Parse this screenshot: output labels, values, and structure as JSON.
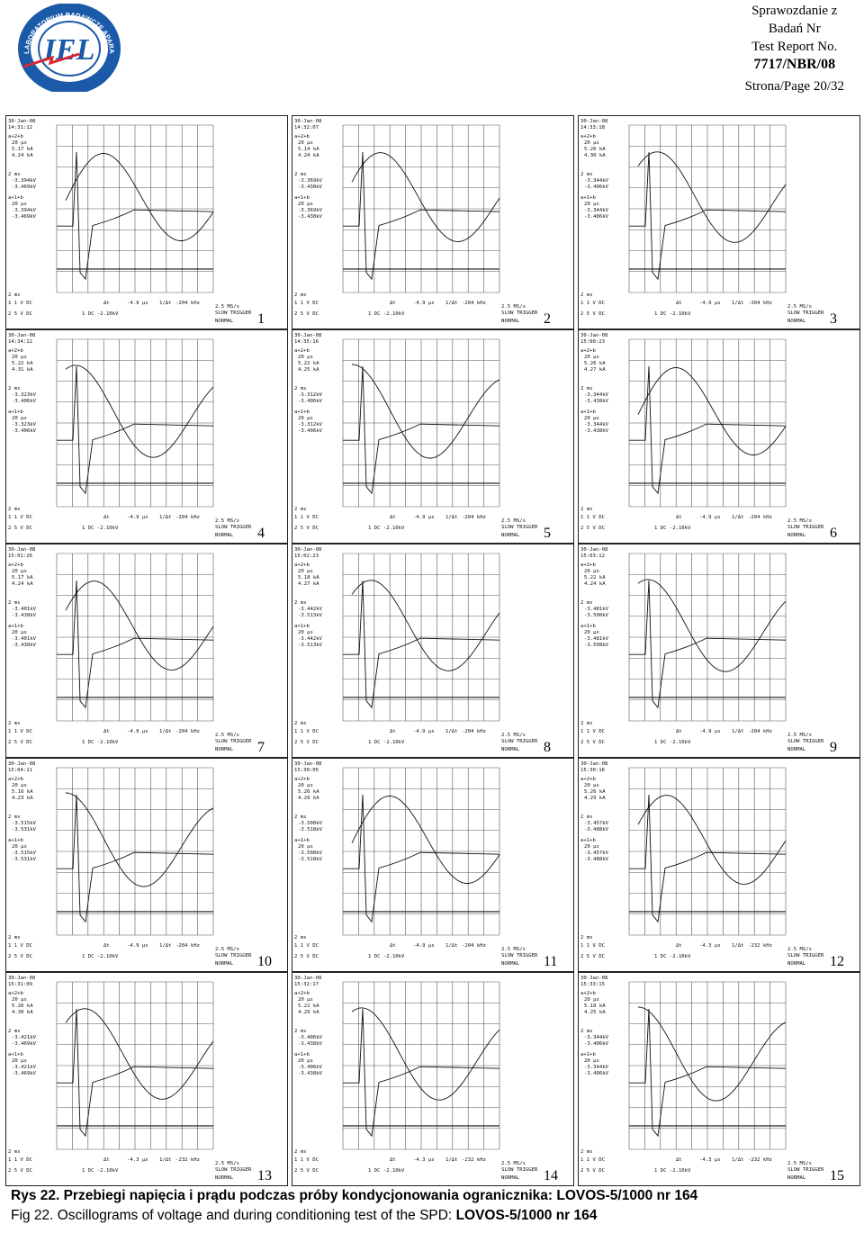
{
  "header": {
    "line1": "Sprawozdanie z",
    "line2": "Badań Nr",
    "line3": "Test Report No.",
    "report_no": "7717/NBR/08",
    "page": "Strona/Page 20/32"
  },
  "logo": {
    "arc_text": "LABORATORIUM BADAWCZE APARATURY ROZDZIELCZEJ",
    "letters": "IEL",
    "color": "#1a5aa8",
    "accent": "#d8262e"
  },
  "scope_common": {
    "cursor_label": "2 ms",
    "ch1": "1  1  V  DC",
    "ch2": "2  5  V  DC",
    "trig": "1  DC -2.10kV",
    "mode": "NORMAL",
    "slow": "SLOW TRIGGER",
    "rate": "2.5 MS/s",
    "ch_a": "a+2+b",
    "ch_b": "a+1+b",
    "time_a": "20 µs",
    "time_b": "20 µs"
  },
  "panels": [
    {
      "num": "1",
      "date": "30-Jan-08",
      "time": "14:31:12",
      "ka1": "5.17 kA",
      "ka2": "4.24 kA",
      "kv1": "-3.394kV",
      "kv2": "-3.469kV",
      "dt": "-4.9 µs",
      "fr": "-204 kHz"
    },
    {
      "num": "2",
      "date": "30-Jan-08",
      "time": "14:32:07",
      "ka1": "5.14 kA",
      "ka2": "4.24 kA",
      "kv1": "-3.369kV",
      "kv2": "-3.438kV",
      "dt": "-4.9 µs",
      "fr": "-204 kHz"
    },
    {
      "num": "3",
      "date": "30-Jan-08",
      "time": "14:33:18",
      "ka1": "5.26 kA",
      "ka2": "4.30 kA",
      "kv1": "-3.344kV",
      "kv2": "-3.406kV",
      "dt": "-4.9 µs",
      "fr": "-204 kHz"
    },
    {
      "num": "4",
      "date": "30-Jan-08",
      "time": "14:34:12",
      "ka1": "5.22 kA",
      "ka2": "4.31 kA",
      "kv1": "-3.323kV",
      "kv2": "-3.406kV",
      "dt": "-4.9 µs",
      "fr": "-204 kHz"
    },
    {
      "num": "5",
      "date": "30-Jan-08",
      "time": "14:35:16",
      "ka1": "5.22 kA",
      "ka2": "4.25 kA",
      "kv1": "-3.312kV",
      "kv2": "-3.406kV",
      "dt": "-4.9 µs",
      "fr": "-204 kHz"
    },
    {
      "num": "6",
      "date": "30-Jan-08",
      "time": "15:00:23",
      "ka1": "5.26 kA",
      "ka2": "4.27 kA",
      "kv1": "-3.344kV",
      "kv2": "-3.438kV",
      "dt": "-4.9 µs",
      "fr": "-204 kHz"
    },
    {
      "num": "7",
      "date": "30-Jan-08",
      "time": "15:01:26",
      "ka1": "5.17 kA",
      "ka2": "4.24 kA",
      "kv1": "-3.401kV",
      "kv2": "-3.438kV",
      "dt": "-4.9 µs",
      "fr": "-204 kHz"
    },
    {
      "num": "8",
      "date": "30-Jan-08",
      "time": "15:02:23",
      "ka1": "5.18 kA",
      "ka2": "4.27 kA",
      "kv1": "-3.442kV",
      "kv2": "-3.513kV",
      "dt": "-4.9 µs",
      "fr": "-204 kHz"
    },
    {
      "num": "9",
      "date": "30-Jan-08",
      "time": "15:03:12",
      "ka1": "5.22 kA",
      "ka2": "4.24 kA",
      "kv1": "-3.481kV",
      "kv2": "-3.508kV",
      "dt": "-4.9 µs",
      "fr": "-204 kHz"
    },
    {
      "num": "10",
      "date": "30-Jan-08",
      "time": "15:04:11",
      "ka1": "5.16 kA",
      "ka2": "4.23 kA",
      "kv1": "-3.515kV",
      "kv2": "-3.531kV",
      "dt": "-4.9 µs",
      "fr": "-204 kHz"
    },
    {
      "num": "11",
      "date": "30-Jan-08",
      "time": "15:30:05",
      "ka1": "5.26 kA",
      "ka2": "4.29 kA",
      "kv1": "-3.508kV",
      "kv2": "-3.518kV",
      "dt": "-4.9 µs",
      "fr": "-204 kHz"
    },
    {
      "num": "12",
      "date": "30-Jan-08",
      "time": "15:30:16",
      "ka1": "5.26 kA",
      "ka2": "4.29 kA",
      "kv1": "-3.457kV",
      "kv2": "-3.488kV",
      "dt": "-4.3 µs",
      "fr": "-232 kHz"
    },
    {
      "num": "13",
      "date": "30-Jan-08",
      "time": "15:31:09",
      "ka1": "5.26 kA",
      "ka2": "4.30 kA",
      "kv1": "-3.421kV",
      "kv2": "-3.469kV",
      "dt": "-4.3 µs",
      "fr": "-232 kHz"
    },
    {
      "num": "14",
      "date": "30-Jan-08",
      "time": "15:32:17",
      "ka1": "5.22 kA",
      "ka2": "4.29 kA",
      "kv1": "-3.406kV",
      "kv2": "-3.438kV",
      "dt": "-4.3 µs",
      "fr": "-232 kHz"
    },
    {
      "num": "15",
      "date": "30-Jan-08",
      "time": "15:33:15",
      "ka1": "5.18 kA",
      "ka2": "4.25 kA",
      "kv1": "-3.344kV",
      "kv2": "-3.406kV",
      "dt": "-4.3 µs",
      "fr": "-232 kHz"
    }
  ],
  "caption": {
    "pl": "Rys 22. Przebiegi napięcia i prądu podczas próby kondycjonowania ogranicznika: LOVOS-5/1000 nr 164",
    "en_prefix": "Fig 22. Oscillograms of voltage and during conditioning test of the SPD:",
    "en_bold": "LOVOS-5/1000 nr 164"
  }
}
